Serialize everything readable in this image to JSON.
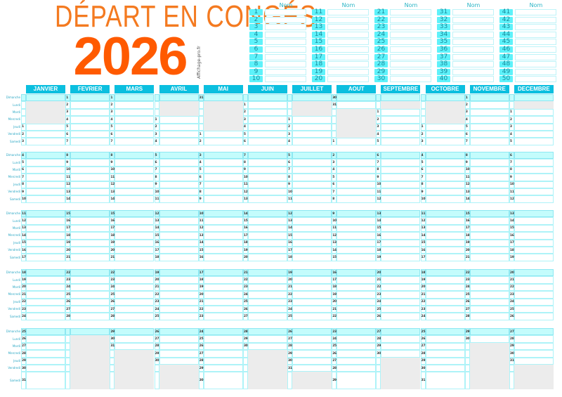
{
  "header": {
    "title": "DÉPART EN CONGÉS",
    "year": "2026",
    "logo_text": "Affichage-pro.fr"
  },
  "name_list": {
    "column_header": "Nom",
    "numbers": [
      1,
      2,
      3,
      4,
      5,
      6,
      7,
      8,
      9,
      10,
      11,
      12,
      13,
      14,
      15,
      16,
      17,
      18,
      19,
      20,
      21,
      22,
      23,
      24,
      25,
      26,
      27,
      28,
      29,
      30,
      31,
      32,
      33,
      34,
      35,
      36,
      37,
      38,
      39,
      40,
      41,
      42,
      43,
      44,
      45,
      46,
      47,
      48,
      49,
      50
    ]
  },
  "weekdays": [
    "Dimanche",
    "Lundi",
    "Mardi",
    "Mercredi",
    "Jeudi",
    "Vendredi",
    "Samedi"
  ],
  "months": [
    {
      "name": "JANVIER",
      "first_weekday": 4,
      "days": 31
    },
    {
      "name": "FEVRIER",
      "first_weekday": 0,
      "days": 28
    },
    {
      "name": "MARS",
      "first_weekday": 0,
      "days": 31
    },
    {
      "name": "AVRIL",
      "first_weekday": 3,
      "days": 30
    },
    {
      "name": "MAI",
      "first_weekday": 5,
      "days": 31
    },
    {
      "name": "JUIN",
      "first_weekday": 1,
      "days": 30
    },
    {
      "name": "JUILLET",
      "first_weekday": 3,
      "days": 31
    },
    {
      "name": "AOUT",
      "first_weekday": 6,
      "days": 31
    },
    {
      "name": "SEPTEMBRE",
      "first_weekday": 2,
      "days": 30
    },
    {
      "name": "OCTOBRE",
      "first_weekday": 4,
      "days": 31
    },
    {
      "name": "NOVEMBRE",
      "first_weekday": 0,
      "days": 30
    },
    {
      "name": "DECEMBRE",
      "first_weekday": 2,
      "days": 31
    }
  ],
  "colors": {
    "title": "#f47a20",
    "year": "#ff5a00",
    "month_header": "#0bbfdf",
    "sunday_row": "#c4fcfc",
    "empty_cell": "#ececec",
    "badge": "#5ef2fa"
  }
}
